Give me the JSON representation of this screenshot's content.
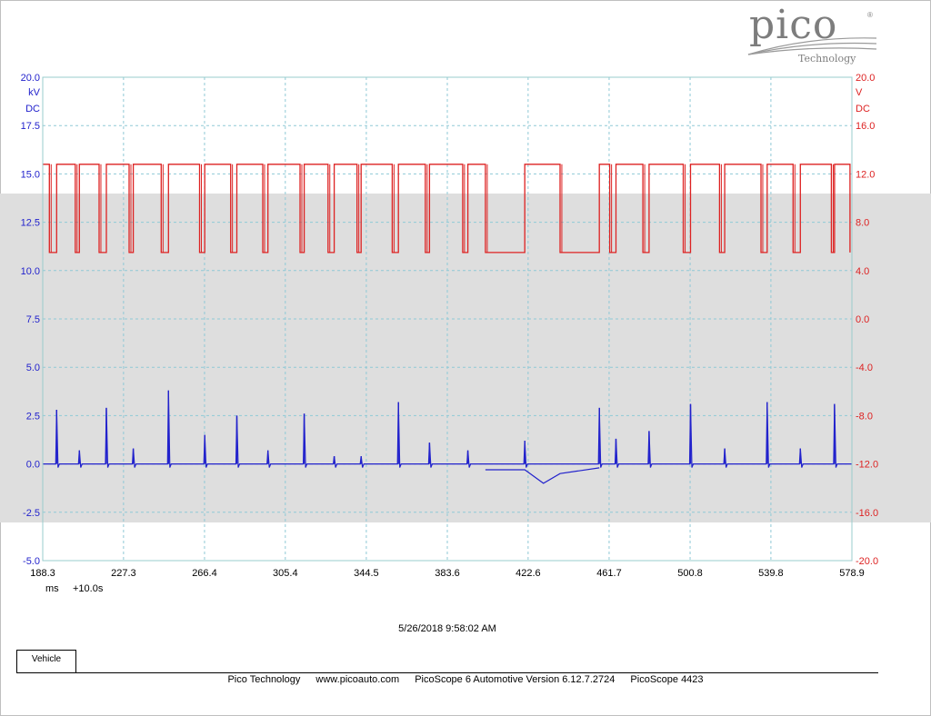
{
  "logo": {
    "wordmark": "pico",
    "subtitle": "Technology",
    "reg": "®"
  },
  "chart_data": {
    "type": "line",
    "x": {
      "ticks": [
        188.3,
        227.3,
        266.4,
        305.4,
        344.5,
        383.6,
        422.6,
        461.7,
        500.8,
        539.8,
        578.9
      ],
      "unit": "ms",
      "offset_label": "+10.0s",
      "range": [
        188.3,
        578.9
      ]
    },
    "y_left": {
      "unit": "kV",
      "coupling": "DC",
      "color": "#2222cc",
      "range": [
        -5.0,
        20.0
      ],
      "ticks": [
        "20.0",
        "17.5",
        "15.0",
        "12.5",
        "10.0",
        "7.5",
        "5.0",
        "2.5",
        "0.0",
        "-2.5",
        "-5.0"
      ]
    },
    "y_right": {
      "unit": "V",
      "coupling": "DC",
      "color": "#dd2222",
      "range": [
        -20.0,
        20.0
      ],
      "ticks": [
        "20.0",
        "16.0",
        "12.0",
        "8.0",
        "4.0",
        "0.0",
        "-4.0",
        "-8.0",
        "-12.0",
        "-16.0",
        "-20.0"
      ]
    },
    "grid": true,
    "series": [
      {
        "color": "#dd2222",
        "axis": "right",
        "high": 12.8,
        "low": 5.5,
        "pulses": [
          [
            191.5,
            195
          ],
          [
            204,
            206
          ],
          [
            215.5,
            219
          ],
          [
            230,
            232
          ],
          [
            245.5,
            249
          ],
          [
            264,
            266.5
          ],
          [
            279,
            282
          ],
          [
            294.5,
            297
          ],
          [
            312.5,
            314.5
          ],
          [
            326,
            329
          ],
          [
            340,
            342
          ],
          [
            357,
            360
          ],
          [
            373,
            375
          ],
          [
            391,
            393.5
          ],
          [
            402,
            421
          ],
          [
            438,
            457
          ],
          [
            462,
            465
          ],
          [
            478,
            481
          ],
          [
            497.5,
            501
          ],
          [
            515,
            517.5
          ],
          [
            535,
            538
          ],
          [
            550.5,
            554
          ],
          [
            569,
            570.5
          ]
        ],
        "lows_tail": {
          "x": 578,
          "value": 5.5
        }
      },
      {
        "color": "#2222cc",
        "axis": "left",
        "baseline": 0.0,
        "spikes": [
          [
            195,
            2.8
          ],
          [
            206,
            0.7
          ],
          [
            219,
            2.9
          ],
          [
            232,
            0.8
          ],
          [
            249,
            3.8
          ],
          [
            266.5,
            1.5
          ],
          [
            282,
            2.5
          ],
          [
            297,
            0.7
          ],
          [
            314.5,
            2.6
          ],
          [
            329,
            0.4
          ],
          [
            342,
            0.4
          ],
          [
            360,
            3.2
          ],
          [
            375,
            1.1
          ],
          [
            393.5,
            0.7
          ],
          [
            421,
            1.2
          ],
          [
            457,
            2.9
          ],
          [
            465,
            1.3
          ],
          [
            481,
            1.7
          ],
          [
            501,
            3.1
          ],
          [
            517.5,
            0.8
          ],
          [
            538,
            3.2
          ],
          [
            554,
            0.8
          ],
          [
            570.5,
            3.1
          ]
        ],
        "dip": [
          [
            402,
            -0.3
          ],
          [
            421,
            -0.3
          ],
          [
            430,
            -1.0
          ],
          [
            438,
            -0.5
          ],
          [
            457,
            -0.2
          ]
        ]
      }
    ]
  },
  "timestamp": "5/26/2018 9:58:02 AM",
  "tab_label": "Vehicle",
  "footer": {
    "company": "Pico Technology",
    "url": "www.picoauto.com",
    "software": "PicoScope 6 Automotive Version 6.12.7.2724",
    "device": "PicoScope 4423"
  }
}
